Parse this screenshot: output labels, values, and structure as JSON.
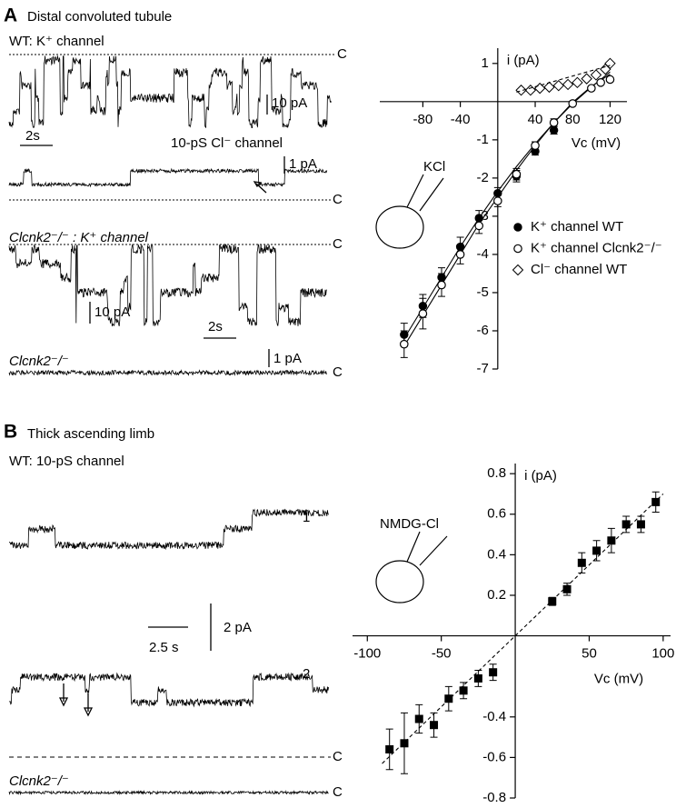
{
  "figure": {
    "panels": [
      {
        "letter": "A",
        "title": "Distal convoluted tubule"
      },
      {
        "letter": "B",
        "title": "Thick ascending limb"
      }
    ],
    "labels": [
      "WT: K⁺ channel",
      "C",
      "10 pA",
      "2s",
      "10-pS Cl⁻ channel",
      "1 pA",
      "C",
      "Clcnk2⁻/⁻ : K⁺ channel",
      "C",
      "10 pA",
      "2s",
      "Clcnk2⁻/⁻",
      "1 pA",
      "C",
      "WT: 10-pS channel",
      "1",
      "2.5 s",
      "2 pA",
      "2",
      "C",
      "Clcnk2⁻/⁻",
      "C"
    ]
  },
  "chart_data": [
    {
      "type": "scatter",
      "xlabel": "Vc (mV)",
      "ylabel": "i (pA)",
      "annotation": "KCl",
      "xlim": [
        -126,
        138
      ],
      "ylim": [
        -7,
        1.4
      ],
      "xticks": [
        -80,
        -40,
        40,
        80,
        120
      ],
      "yticks": [
        1,
        -1,
        -2,
        -3,
        -4,
        -5,
        -6,
        -7
      ],
      "series": [
        {
          "name": "K⁺ channel WT",
          "marker": "circle-filled",
          "color": "#000000",
          "x": [
            -100,
            -80,
            -60,
            -40,
            -20,
            0,
            20,
            40,
            60
          ],
          "values": [
            -6.1,
            -5.35,
            -4.6,
            -3.8,
            -3.05,
            -2.4,
            -1.95,
            -1.3,
            -0.75
          ],
          "errors": [
            0.3,
            0.3,
            0.25,
            0.25,
            0.2,
            0.15,
            0.15,
            0.1,
            0.1
          ]
        },
        {
          "name": "K⁺ channel Clcnk2⁻/⁻",
          "marker": "circle-open",
          "color": "#000000",
          "x": [
            -100,
            -80,
            -60,
            -40,
            -20,
            0,
            20,
            40,
            60,
            80,
            100,
            110,
            120
          ],
          "values": [
            -6.35,
            -5.55,
            -4.8,
            -4.0,
            -3.25,
            -2.6,
            -1.9,
            -1.15,
            -0.55,
            -0.05,
            0.35,
            0.5,
            0.58
          ],
          "errors": [
            0.35,
            0.4,
            0.3,
            0.25,
            0.2,
            0.15,
            0.15,
            0.1,
            0.1,
            0.05,
            0.05,
            0.05,
            0.05
          ]
        },
        {
          "name": "Cl⁻ channel WT",
          "marker": "diamond",
          "color": "#000000",
          "x": [
            25,
            35,
            45,
            55,
            65,
            75,
            85,
            95,
            105,
            115,
            120
          ],
          "values": [
            0.3,
            0.3,
            0.35,
            0.38,
            0.42,
            0.45,
            0.5,
            0.6,
            0.7,
            0.85,
            1.0
          ]
        }
      ],
      "fits": [
        {
          "dashed": false,
          "x": [
            -100,
            -80,
            -60,
            -40,
            -20,
            0,
            20,
            40,
            60,
            80,
            100,
            120
          ],
          "values": [
            -6.2,
            -5.4,
            -4.6,
            -3.8,
            -3.05,
            -2.35,
            -1.7,
            -1.1,
            -0.55,
            -0.05,
            0.38,
            0.78
          ]
        },
        {
          "dashed": false,
          "x": [
            -100,
            -80,
            -60,
            -40,
            -20,
            0,
            20,
            40,
            60,
            80,
            100,
            120
          ],
          "values": [
            -6.4,
            -5.6,
            -4.8,
            -4.0,
            -3.2,
            -2.5,
            -1.8,
            -1.15,
            -0.55,
            -0.02,
            0.4,
            0.72
          ]
        },
        {
          "dashed": true,
          "x": [
            20,
            120
          ],
          "values": [
            0.25,
            0.95
          ]
        }
      ]
    },
    {
      "type": "scatter",
      "xlabel": "Vc (mV)",
      "ylabel": "i (pA)",
      "annotation": "NMDG-Cl",
      "xlim": [
        -110,
        105
      ],
      "ylim": [
        -0.8,
        0.85
      ],
      "xticks": [
        -100,
        -50,
        50,
        100
      ],
      "yticks": [
        0.8,
        0.6,
        0.4,
        0.2,
        -0.4,
        -0.6,
        -0.8
      ],
      "series": [
        {
          "name": null,
          "marker": "square",
          "color": "#000000",
          "x": [
            -85,
            -75,
            -65,
            -55,
            -45,
            -35,
            -25,
            -15,
            25,
            35,
            45,
            55,
            65,
            75,
            85,
            95
          ],
          "values": [
            -0.56,
            -0.53,
            -0.41,
            -0.44,
            -0.31,
            -0.27,
            -0.21,
            -0.18,
            0.17,
            0.23,
            0.36,
            0.42,
            0.47,
            0.55,
            0.55,
            0.66
          ],
          "errors": [
            0.1,
            0.15,
            0.07,
            0.06,
            0.06,
            0.04,
            0.04,
            0.04,
            0.02,
            0.03,
            0.05,
            0.05,
            0.06,
            0.04,
            0.04,
            0.05
          ]
        }
      ],
      "fits": [
        {
          "dashed": true,
          "x": [
            -90,
            100
          ],
          "values": [
            -0.63,
            0.7
          ]
        }
      ]
    }
  ]
}
